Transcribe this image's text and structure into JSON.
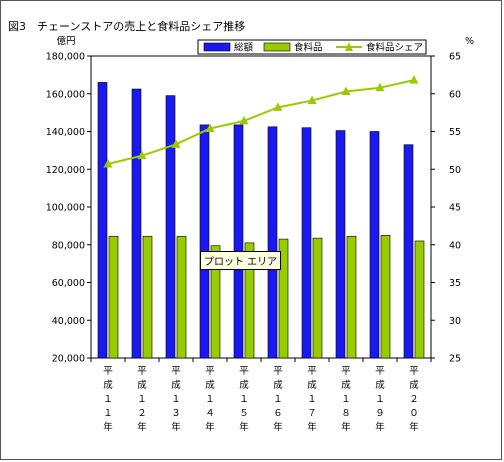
{
  "chart_data": {
    "type": "bar",
    "title": "図3　チェーンストアの売上と食料品シェア推移",
    "left_axis_unit": "億円",
    "right_axis_unit": "%",
    "categories": [
      "平成１１年",
      "平成１２年",
      "平成１３年",
      "平成１４年",
      "平成１５年",
      "平成１６年",
      "平成１７年",
      "平成１８年",
      "平成１９年",
      "平成２０年"
    ],
    "category_labels": [
      [
        "平",
        "成",
        "１",
        "１",
        "年"
      ],
      [
        "平",
        "成",
        "１",
        "２",
        "年"
      ],
      [
        "平",
        "成",
        "１",
        "３",
        "年"
      ],
      [
        "平",
        "成",
        "１",
        "４",
        "年"
      ],
      [
        "平",
        "成",
        "１",
        "５",
        "年"
      ],
      [
        "平",
        "成",
        "１",
        "６",
        "年"
      ],
      [
        "平",
        "成",
        "１",
        "７",
        "年"
      ],
      [
        "平",
        "成",
        "１",
        "８",
        "年"
      ],
      [
        "平",
        "成",
        "１",
        "９",
        "年"
      ],
      [
        "平",
        "成",
        "２",
        "０",
        "年"
      ]
    ],
    "y_left": {
      "min": 20000,
      "max": 180000,
      "step": 20000,
      "tick_labels": [
        "20,000",
        "40,000",
        "60,000",
        "80,000",
        "100,000",
        "120,000",
        "140,000",
        "160,000",
        "180,000"
      ]
    },
    "y_right": {
      "min": 25,
      "max": 65,
      "step": 5,
      "tick_labels": [
        "25",
        "30",
        "35",
        "40",
        "45",
        "50",
        "55",
        "60",
        "65"
      ]
    },
    "series": [
      {
        "name": "総額",
        "kind": "bar",
        "axis": "left",
        "color": "#1a1af0",
        "values": [
          166000,
          162500,
          159000,
          143500,
          143500,
          142500,
          142000,
          140500,
          140000,
          133000
        ]
      },
      {
        "name": "食料品",
        "kind": "bar",
        "axis": "left",
        "color": "#99cc00",
        "values": [
          84500,
          84500,
          84500,
          79500,
          81000,
          83000,
          83500,
          84500,
          85000,
          82000
        ]
      },
      {
        "name": "食料品シェア",
        "kind": "line",
        "axis": "right",
        "color": "#99cc00",
        "values": [
          50.7,
          51.8,
          53.3,
          55.4,
          56.4,
          58.2,
          59.1,
          60.3,
          60.8,
          61.8
        ]
      }
    ],
    "legend_position": "top-right",
    "grid": false
  },
  "tooltip": {
    "text": "プロット エリア"
  }
}
